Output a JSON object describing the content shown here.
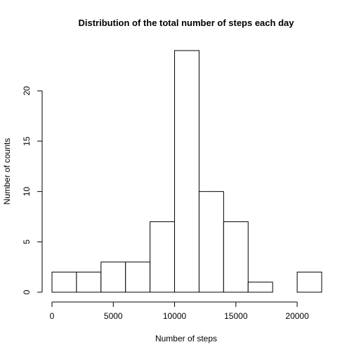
{
  "chart_data": {
    "type": "bar",
    "title": "Distribution of the total number of steps each day",
    "xlabel": "Number of steps",
    "ylabel": "Number of counts",
    "bin_edges": [
      0,
      2000,
      4000,
      6000,
      8000,
      10000,
      12000,
      14000,
      16000,
      18000,
      20000,
      22000
    ],
    "values": [
      2,
      2,
      3,
      3,
      7,
      24,
      10,
      7,
      1,
      0,
      2
    ],
    "xlim": [
      0,
      22000
    ],
    "ylim": [
      0,
      24
    ],
    "x_ticks": [
      0,
      5000,
      10000,
      15000,
      20000
    ],
    "x_tick_labels": [
      "0",
      "5000",
      "10000",
      "15000",
      "20000"
    ],
    "y_ticks": [
      0,
      5,
      10,
      15,
      20
    ],
    "y_tick_labels": [
      "0",
      "5",
      "10",
      "15",
      "20"
    ],
    "grid": false,
    "colors": {
      "bar_fill": "#ffffff",
      "bar_stroke": "#000000",
      "axis": "#000000"
    }
  }
}
